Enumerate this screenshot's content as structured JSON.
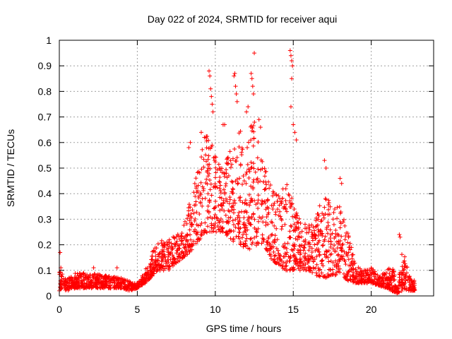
{
  "chart_data": {
    "type": "scatter",
    "title": "Day 022 of 2024, SRMTID for receiver aqui",
    "xlabel": "GPS time / hours",
    "ylabel": "SRMTID / TECUs",
    "xlim": [
      0,
      24
    ],
    "ylim": [
      0,
      1
    ],
    "xticks": [
      0,
      5,
      10,
      15,
      20
    ],
    "yticks": [
      0,
      0.1,
      0.2,
      0.3,
      0.4,
      0.5,
      0.6,
      0.7,
      0.8,
      0.9,
      1
    ],
    "xtick_labels": [
      "0",
      "5",
      "10",
      "15",
      "20"
    ],
    "ytick_labels": [
      "0",
      "0.1",
      "0.2",
      "0.3",
      "0.4",
      "0.5",
      "0.6",
      "0.7",
      "0.8",
      "0.9",
      "1"
    ],
    "grid": true,
    "marker": "+",
    "color": "#ff0000",
    "envelope": {
      "x": [
        0,
        0.5,
        1,
        2,
        3,
        4,
        4.5,
        5,
        5.5,
        6,
        6.5,
        7,
        7.5,
        8,
        8.5,
        9,
        9.5,
        10,
        10.5,
        11,
        11.5,
        12,
        12.5,
        13,
        13.5,
        14,
        14.5,
        15,
        15.5,
        16,
        16.5,
        17,
        17.5,
        18,
        18.5,
        19,
        19.5,
        20,
        20.5,
        21,
        21.3,
        21.7,
        22,
        22.5,
        22.8
      ],
      "low": [
        0.02,
        0.02,
        0.03,
        0.03,
        0.03,
        0.03,
        0.02,
        0.03,
        0.05,
        0.08,
        0.1,
        0.1,
        0.13,
        0.15,
        0.18,
        0.22,
        0.25,
        0.25,
        0.25,
        0.22,
        0.2,
        0.18,
        0.18,
        0.2,
        0.15,
        0.12,
        0.1,
        0.1,
        0.1,
        0.1,
        0.08,
        0.07,
        0.08,
        0.08,
        0.06,
        0.05,
        0.05,
        0.05,
        0.04,
        0.03,
        0.02,
        0.01,
        0.02,
        0.02,
        0.02
      ],
      "high": [
        0.1,
        0.07,
        0.09,
        0.09,
        0.08,
        0.07,
        0.06,
        0.05,
        0.1,
        0.18,
        0.22,
        0.22,
        0.24,
        0.28,
        0.4,
        0.55,
        0.65,
        0.55,
        0.5,
        0.58,
        0.65,
        0.65,
        0.7,
        0.55,
        0.45,
        0.4,
        0.45,
        0.38,
        0.3,
        0.28,
        0.35,
        0.4,
        0.38,
        0.35,
        0.25,
        0.12,
        0.1,
        0.11,
        0.08,
        0.1,
        0.14,
        0.03,
        0.2,
        0.07,
        0.06
      ]
    },
    "outliers": [
      {
        "x": 0.05,
        "y": 0.17
      },
      {
        "x": 0.1,
        "y": 0.11
      },
      {
        "x": 2.2,
        "y": 0.11
      },
      {
        "x": 3.7,
        "y": 0.11
      },
      {
        "x": 8.3,
        "y": 0.58
      },
      {
        "x": 8.4,
        "y": 0.6
      },
      {
        "x": 9.1,
        "y": 0.64
      },
      {
        "x": 9.3,
        "y": 0.62
      },
      {
        "x": 9.6,
        "y": 0.88
      },
      {
        "x": 9.65,
        "y": 0.86
      },
      {
        "x": 9.7,
        "y": 0.81
      },
      {
        "x": 9.75,
        "y": 0.78
      },
      {
        "x": 9.8,
        "y": 0.75
      },
      {
        "x": 9.85,
        "y": 0.72
      },
      {
        "x": 10.5,
        "y": 0.67
      },
      {
        "x": 10.6,
        "y": 0.67
      },
      {
        "x": 11.2,
        "y": 0.86
      },
      {
        "x": 11.25,
        "y": 0.87
      },
      {
        "x": 11.3,
        "y": 0.82
      },
      {
        "x": 11.35,
        "y": 0.79
      },
      {
        "x": 11.4,
        "y": 0.76
      },
      {
        "x": 12.0,
        "y": 0.72
      },
      {
        "x": 12.1,
        "y": 0.74
      },
      {
        "x": 12.3,
        "y": 0.87
      },
      {
        "x": 12.35,
        "y": 0.85
      },
      {
        "x": 12.4,
        "y": 0.82
      },
      {
        "x": 12.45,
        "y": 0.79
      },
      {
        "x": 12.5,
        "y": 0.95
      },
      {
        "x": 12.8,
        "y": 0.69
      },
      {
        "x": 12.9,
        "y": 0.66
      },
      {
        "x": 14.8,
        "y": 0.96
      },
      {
        "x": 14.85,
        "y": 0.94
      },
      {
        "x": 14.9,
        "y": 0.92
      },
      {
        "x": 14.95,
        "y": 0.9
      },
      {
        "x": 14.9,
        "y": 0.85
      },
      {
        "x": 14.85,
        "y": 0.74
      },
      {
        "x": 15.0,
        "y": 0.67
      },
      {
        "x": 15.1,
        "y": 0.64
      },
      {
        "x": 15.2,
        "y": 0.61
      },
      {
        "x": 17.0,
        "y": 0.53
      },
      {
        "x": 17.1,
        "y": 0.5
      },
      {
        "x": 18.0,
        "y": 0.46
      },
      {
        "x": 18.1,
        "y": 0.44
      },
      {
        "x": 21.8,
        "y": 0.24
      },
      {
        "x": 21.85,
        "y": 0.23
      }
    ],
    "point_count": 2200
  }
}
